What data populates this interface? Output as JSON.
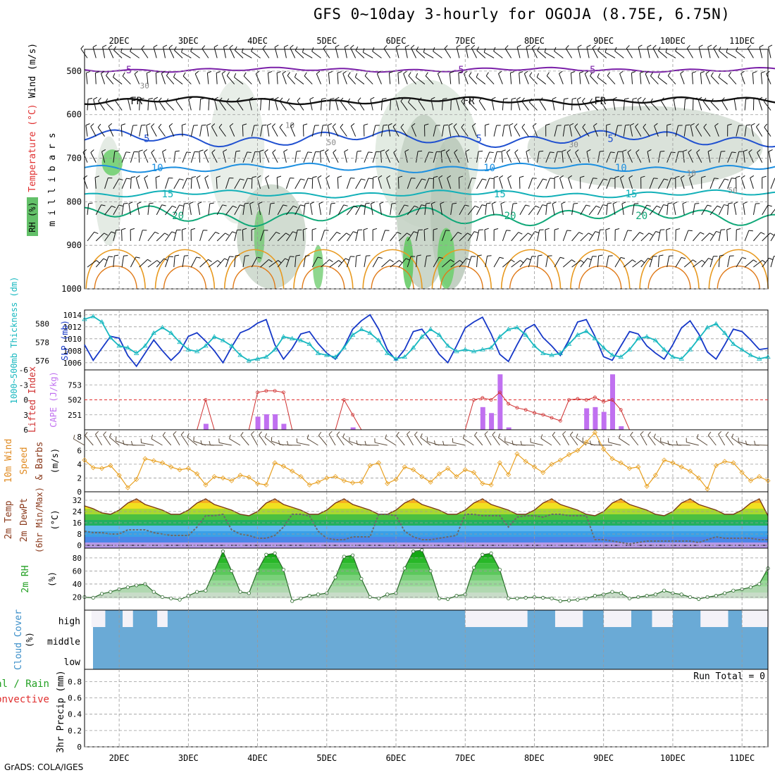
{
  "page": {
    "title": "GFS 0~10day 3-hourly for OGOJA (8.75E, 6.75N)",
    "credit": "GrADS: COLA/IGES"
  },
  "chart_data": [
    {
      "panel": "upper-air",
      "type": "heatmap",
      "ylabel": "millibars",
      "legend_labels": [
        "Wind (m/s)",
        "Temperature (°C)",
        "RH (%)"
      ],
      "legend_colors": [
        "#000000",
        "#e03030",
        "#3cb043"
      ],
      "ylim": [
        450,
        1000
      ],
      "y_ticks": [
        500,
        600,
        700,
        800,
        900,
        1000
      ],
      "x_ticks": [
        "2DEC",
        "3DEC",
        "4DEC",
        "5DEC",
        "6DEC",
        "7DEC",
        "8DEC",
        "9DEC",
        "10DEC",
        "11DEC"
      ],
      "x_tick_days": [
        0.5,
        1.5,
        2.5,
        3.5,
        4.5,
        5.5,
        6.5,
        7.5,
        8.5,
        9.5
      ],
      "x_range_days": [
        0,
        9.875
      ],
      "isotherms": [
        {
          "label": "-5",
          "color": "#7a1fa8",
          "level_mb": 497,
          "amp": 5
        },
        {
          "label": "FR",
          "color": "#111111",
          "level_mb": 568,
          "amp": 8
        },
        {
          "label": "5",
          "color": "#2050d0",
          "level_mb": 655,
          "amp": 18
        },
        {
          "label": "10",
          "color": "#1c8fe0",
          "level_mb": 722,
          "amp": 10
        },
        {
          "label": "15",
          "color": "#12b0b8",
          "level_mb": 782,
          "amp": 8
        },
        {
          "label": "20",
          "color": "#10a878",
          "level_mb": 832,
          "amp": 22
        }
      ],
      "rh_contour_labels": [
        "10",
        "30",
        "50"
      ]
    },
    {
      "panel": "thickness-slp",
      "type": "line",
      "left_label": "1000~500mb Thickness (dm)",
      "right_label": "SLP (mb)",
      "left_ticks": [
        576,
        578,
        580
      ],
      "right_ticks": [
        1006,
        1008,
        1010,
        1012,
        1014
      ],
      "left_range": [
        575,
        581.5
      ],
      "right_range": [
        1004.8,
        1014.8
      ],
      "series": [
        {
          "name": "SLP (mb)",
          "color": "#1638c8",
          "axis": "right",
          "values": [
            1009.0,
            1006.4,
            1008.4,
            1010.4,
            1010.1,
            1007.2,
            1005.4,
            1007.6,
            1009.8,
            1008.0,
            1006.4,
            1007.8,
            1010.4,
            1011.0,
            1009.6,
            1008.0,
            1006.0,
            1008.6,
            1011.0,
            1011.6,
            1012.6,
            1013.2,
            1009.0,
            1006.6,
            1008.4,
            1010.8,
            1011.2,
            1009.2,
            1007.6,
            1006.6,
            1008.6,
            1011.6,
            1013.0,
            1014.0,
            1011.6,
            1008.2,
            1006.4,
            1008.2,
            1011.2,
            1011.6,
            1009.6,
            1007.4,
            1006.0,
            1008.8,
            1011.8,
            1012.8,
            1013.6,
            1010.8,
            1007.4,
            1006.2,
            1009.0,
            1011.6,
            1012.4,
            1010.2,
            1008.8,
            1007.2,
            1009.8,
            1012.8,
            1013.2,
            1010.4,
            1007.0,
            1006.4,
            1008.8,
            1011.2,
            1010.8,
            1008.8,
            1007.6,
            1006.6,
            1009.0,
            1011.8,
            1013.0,
            1010.8,
            1007.8,
            1006.6,
            1009.0,
            1011.6,
            1011.2,
            1009.8,
            1008.2,
            1008.4
          ]
        },
        {
          "name": "1000-500mb Thickness (dm)",
          "color": "#18b8c0",
          "axis": "left",
          "values": [
            580.5,
            580.8,
            580.2,
            578.5,
            577.6,
            577.4,
            576.8,
            577.6,
            579.0,
            579.6,
            579.0,
            578.0,
            577.2,
            577.0,
            577.6,
            578.6,
            578.2,
            577.6,
            576.6,
            576.0,
            576.2,
            576.4,
            577.2,
            578.6,
            578.4,
            578.2,
            577.8,
            576.8,
            576.6,
            576.4,
            577.4,
            578.8,
            579.4,
            579.0,
            578.2,
            576.8,
            576.2,
            576.4,
            577.4,
            578.6,
            579.4,
            578.8,
            577.6,
            577.0,
            577.2,
            577.0,
            577.2,
            577.4,
            578.6,
            579.4,
            579.6,
            578.8,
            577.6,
            576.8,
            576.6,
            576.8,
            577.8,
            578.8,
            579.2,
            578.4,
            577.4,
            576.6,
            576.4,
            577.2,
            578.4,
            578.6,
            578.2,
            577.2,
            576.4,
            576.2,
            577.2,
            578.4,
            579.6,
            580.0,
            579.0,
            577.8,
            577.2,
            576.6,
            576.2,
            576.4
          ]
        }
      ]
    },
    {
      "panel": "lifted-index-cape",
      "type": "bar",
      "left_label": "Lifted Index",
      "right_label": "CAPE (J/kg)",
      "li_ticks": [
        -6,
        -3,
        0,
        3,
        6
      ],
      "li_range": [
        -6,
        6
      ],
      "cape_ticks": [
        251,
        502,
        753
      ],
      "cape_range": [
        0,
        1004
      ],
      "cape_color": "#c070f0",
      "li_color": "#d03030",
      "cape_values": [
        0,
        0,
        0,
        0,
        0,
        0,
        0,
        0,
        0,
        0,
        0,
        0,
        0,
        0,
        100,
        0,
        0,
        0,
        0,
        0,
        220,
        260,
        260,
        100,
        0,
        0,
        0,
        0,
        0,
        0,
        0,
        40,
        0,
        0,
        0,
        0,
        0,
        0,
        0,
        0,
        0,
        0,
        0,
        0,
        0,
        0,
        380,
        280,
        930,
        40,
        0,
        0,
        0,
        0,
        0,
        0,
        0,
        0,
        360,
        380,
        300,
        930,
        60,
        0,
        0,
        0,
        0,
        0,
        0,
        0,
        0,
        0,
        0,
        0,
        0,
        0,
        0,
        0,
        0,
        0
      ],
      "li_values": [
        6,
        6,
        6,
        6,
        6,
        6,
        6,
        6,
        6,
        6,
        6,
        6,
        6,
        6,
        0,
        6,
        6,
        6,
        6,
        6,
        -1.5,
        -1.8,
        -1.8,
        -1.5,
        6,
        6,
        6,
        6,
        6,
        6,
        0,
        3,
        6,
        6,
        6,
        6,
        6,
        6,
        6,
        6,
        6,
        6,
        6,
        6,
        6,
        0,
        -0.4,
        0.0,
        -1.5,
        0.8,
        1.6,
        2.0,
        2.6,
        3.0,
        3.6,
        4.2,
        0.0,
        -0.2,
        0.0,
        -0.5,
        0.4,
        0.0,
        2.0,
        6,
        6,
        6,
        6,
        6,
        6,
        6,
        6,
        6,
        6,
        6,
        6,
        6,
        6,
        6,
        6,
        6
      ]
    },
    {
      "panel": "10m-wind",
      "type": "line",
      "ylabel": "10m Wind Speed & Barbs (m/s)",
      "label_colors": [
        "#e08a20",
        "#8a3a1c"
      ],
      "y_ticks": [
        0,
        2,
        4,
        6,
        8
      ],
      "ylim": [
        0,
        9
      ],
      "color": "#e8a020",
      "values": [
        4.6,
        3.5,
        3.4,
        3.8,
        2.4,
        0.6,
        1.8,
        4.8,
        4.5,
        4.2,
        3.6,
        3.2,
        3.4,
        2.6,
        1.0,
        2.2,
        2.0,
        1.6,
        2.4,
        2.1,
        1.2,
        1.0,
        4.2,
        3.7,
        3.0,
        2.2,
        1.0,
        1.4,
        2.0,
        2.2,
        1.6,
        1.3,
        1.4,
        3.8,
        4.2,
        1.2,
        1.8,
        3.6,
        3.2,
        2.2,
        1.4,
        2.6,
        3.4,
        2.2,
        3.2,
        2.8,
        1.2,
        1.0,
        4.2,
        2.5,
        5.5,
        4.4,
        3.6,
        2.8,
        4.0,
        4.6,
        5.4,
        6.0,
        7.2,
        8.6,
        6.2,
        4.8,
        4.2,
        3.4,
        3.6,
        0.8,
        2.4,
        4.6,
        4.2,
        3.6,
        3.0,
        2.0,
        0.4,
        3.8,
        4.4,
        4.2,
        2.8,
        1.6,
        2.2,
        1.6
      ]
    },
    {
      "panel": "2m-temp",
      "type": "area",
      "ylabel": "2m Temp 2m DewPt (6hr Min/Max) (°C)",
      "label_colors": [
        "#8a3a1c",
        "#8a3a1c",
        "#8a3a1c"
      ],
      "y_ticks": [
        0,
        8,
        16,
        24,
        32
      ],
      "ylim": [
        -2,
        38
      ],
      "temp_values": [
        28,
        26,
        23,
        22,
        25,
        30,
        33,
        29,
        27,
        25,
        22,
        22,
        25,
        30,
        33,
        29,
        27,
        25,
        22,
        21,
        24,
        30,
        33,
        29,
        27,
        25,
        22,
        22,
        25,
        30,
        33,
        29,
        27,
        25,
        22,
        22,
        25,
        30,
        33,
        29,
        27,
        25,
        22,
        22,
        25,
        30,
        33,
        29,
        27,
        25,
        22,
        22,
        25,
        30,
        33,
        29,
        27,
        25,
        22,
        21,
        24,
        30,
        33,
        29,
        27,
        25,
        22,
        21,
        24,
        30,
        33,
        29,
        27,
        25,
        22,
        22,
        25,
        30,
        33,
        21
      ],
      "dewpoint_values": [
        10,
        9,
        9,
        8,
        8,
        11,
        11,
        11,
        9,
        8,
        7,
        7,
        7,
        13,
        21,
        21,
        22,
        11,
        8,
        7,
        5,
        5,
        7,
        13,
        22,
        22,
        21,
        10,
        5,
        4,
        4,
        6,
        6,
        6,
        22,
        22,
        21,
        10,
        6,
        4,
        4,
        5,
        6,
        7,
        22,
        22,
        21,
        21,
        21,
        13,
        20,
        21,
        21,
        20,
        22,
        22,
        21,
        21,
        21,
        4,
        4,
        3,
        2,
        1,
        2,
        3,
        3,
        3,
        3,
        3,
        3,
        2,
        4,
        6,
        5,
        5,
        5,
        5,
        4,
        4
      ]
    },
    {
      "panel": "2m-rh",
      "type": "area",
      "ylabel": "2m RH (%)",
      "label_color": "#22a022",
      "y_ticks": [
        20,
        40,
        60,
        80
      ],
      "ylim": [
        0,
        95
      ],
      "values": [
        20,
        19,
        25,
        28,
        32,
        35,
        38,
        40,
        28,
        20,
        18,
        16,
        22,
        28,
        30,
        60,
        90,
        60,
        28,
        26,
        60,
        85,
        87,
        62,
        14,
        18,
        22,
        24,
        26,
        50,
        82,
        84,
        48,
        20,
        18,
        24,
        26,
        64,
        90,
        92,
        60,
        18,
        17,
        22,
        24,
        65,
        85,
        87,
        62,
        18,
        18,
        19,
        20,
        19,
        18,
        14,
        15,
        16,
        18,
        22,
        24,
        28,
        26,
        18,
        20,
        22,
        24,
        30,
        26,
        24,
        20,
        17,
        20,
        22,
        26,
        30,
        32,
        35,
        40,
        64
      ]
    },
    {
      "panel": "cloud-cover",
      "type": "heatmap",
      "ylabel": "Cloud Cover (%)",
      "label_color": "#3a8ec8",
      "rows": [
        "high",
        "middle",
        "low"
      ],
      "cover_color": "#6aaad6"
    },
    {
      "panel": "precip",
      "type": "bar",
      "ylabel": "3hr Precip (mm)",
      "left_label_lines": [
        "Total / Rain",
        "Convective"
      ],
      "left_label_colors": [
        "#22a022",
        "#e03030"
      ],
      "y_ticks": [
        0,
        0.2,
        0.4,
        0.6,
        0.8
      ],
      "ylim": [
        0,
        0.95
      ],
      "values": [],
      "run_total_label": "Run Total = 0"
    }
  ]
}
